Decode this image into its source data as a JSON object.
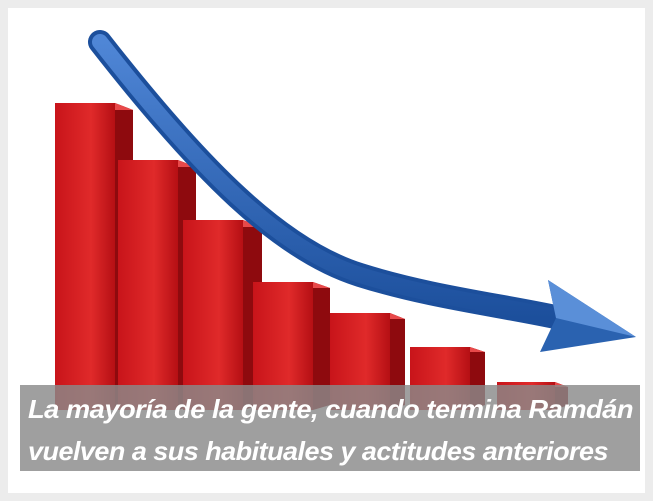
{
  "caption": {
    "lines": [
      "La mayoría de la gente, cuando termina Ramdán",
      "vuelven a sus habituales y actitudes anteriores"
    ]
  }
}
